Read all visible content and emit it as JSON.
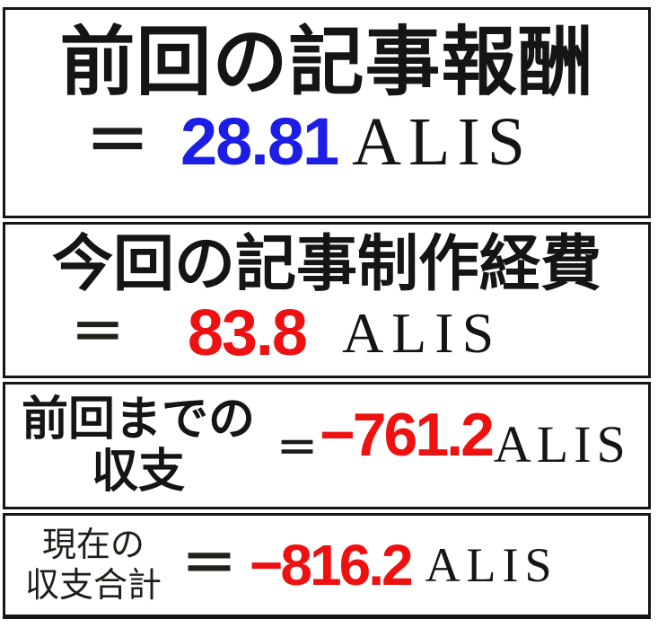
{
  "panel": {
    "rows": [
      {
        "title": "前回の記事報酬",
        "equals": "＝",
        "value": "28.81",
        "unit": "ALIS",
        "value_color": "#1d1de8"
      },
      {
        "title": "今回の記事制作経費",
        "equals": "＝",
        "value": "83.8",
        "unit": "ALIS",
        "value_color": "#ee1111"
      },
      {
        "title_line1": "前回までの",
        "title_line2": "収支",
        "equals": "＝",
        "value": "−761.2",
        "unit": "ALIS",
        "value_color": "#ee1111"
      },
      {
        "title_line1": "現在の",
        "title_line2": "収支合計",
        "equals": "＝",
        "value": "−816.2",
        "unit": "ALIS",
        "value_color": "#ee1111"
      }
    ]
  },
  "colors": {
    "background": "#ffffff",
    "border": "#151515",
    "text": "#151515",
    "reward_value": "#1d1de8",
    "expense_value": "#ee1111"
  }
}
